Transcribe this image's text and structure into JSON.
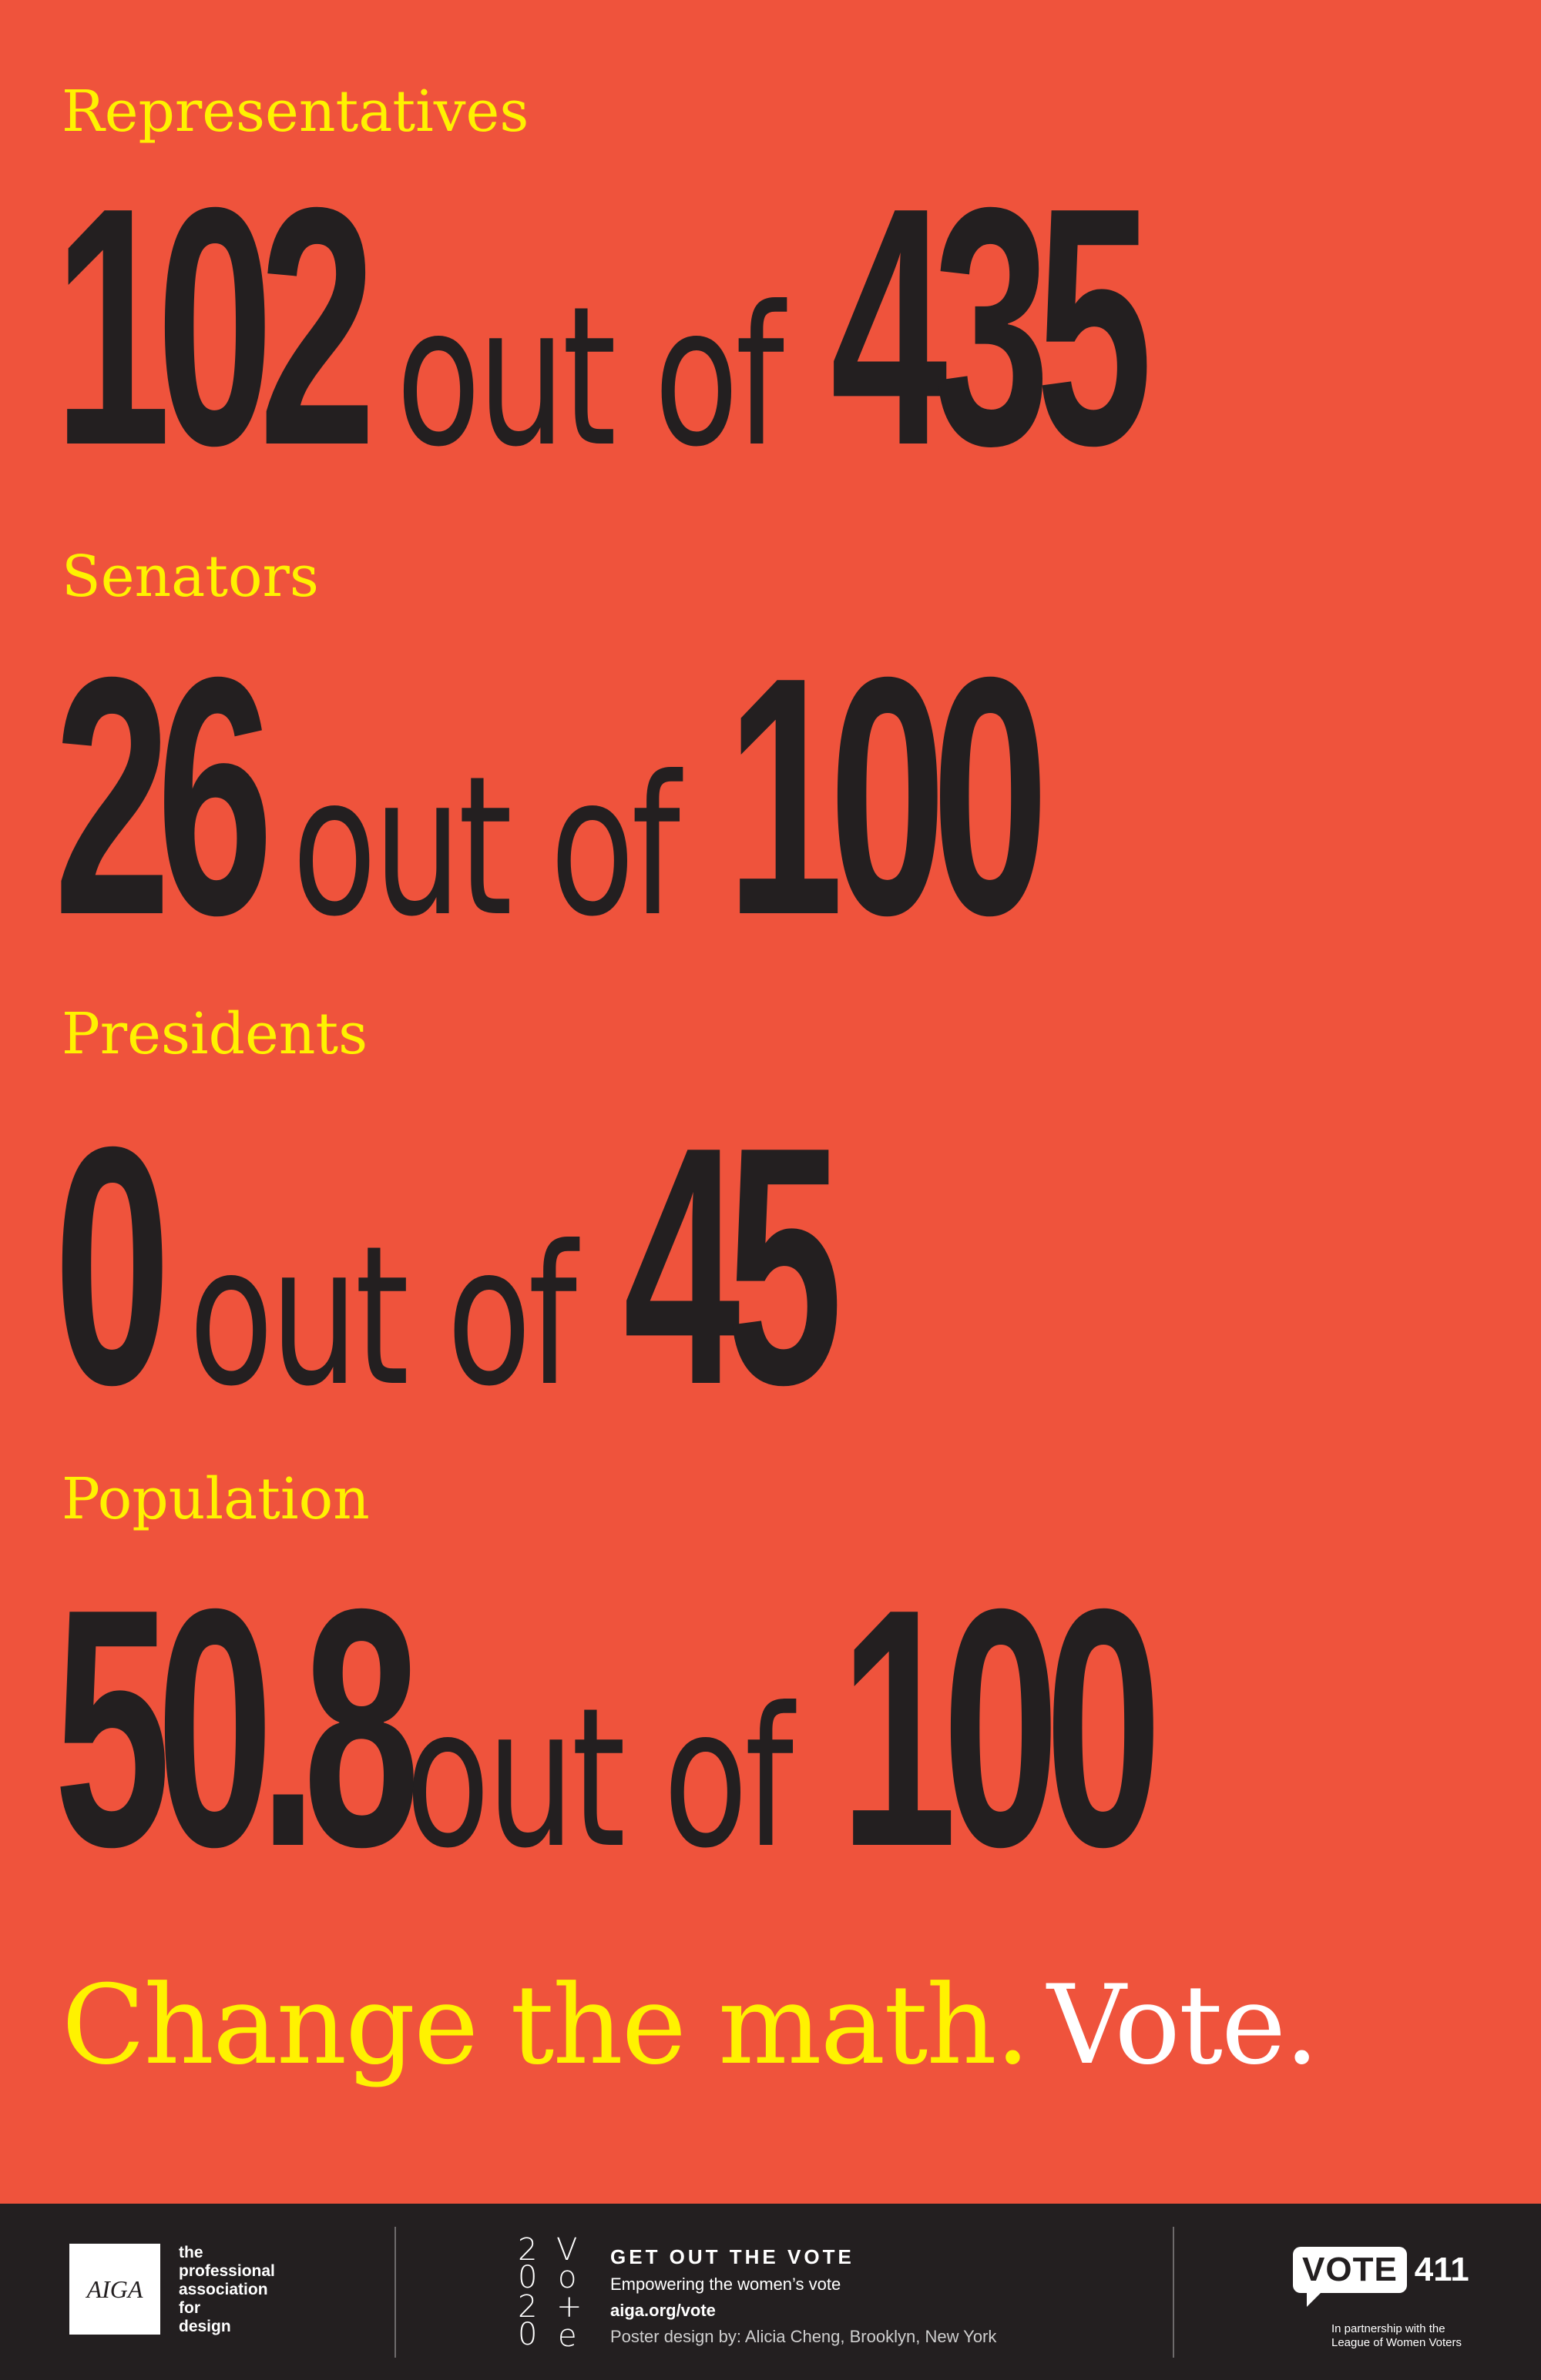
{
  "colors": {
    "background": "#ef533c",
    "label": "#fff200",
    "numbers": "#231f20",
    "footer": "#231f20",
    "vote_word": "#ffffff"
  },
  "stats": [
    {
      "label": "Representatives",
      "count": "102",
      "out_of": "out of",
      "total": "435"
    },
    {
      "label": "Senators",
      "count": "26",
      "out_of": "out of",
      "total": "100"
    },
    {
      "label": "Presidents",
      "count": "0",
      "out_of": "out of",
      "total": "45"
    },
    {
      "label": "Population",
      "count": "50.8",
      "out_of": "out of",
      "total": "100"
    }
  ],
  "tagline": {
    "main": "Change the math.",
    "vote": "Vote."
  },
  "footer": {
    "aiga_logo": "AIGA",
    "aiga_desc": [
      "the",
      "professional",
      "association",
      "for",
      "design"
    ],
    "mark_glyphs": [
      "2",
      "V",
      "0",
      "o",
      "2",
      "+",
      "0",
      "e"
    ],
    "gotv_title": "GET OUT THE VOTE",
    "gotv_subtitle": "Empowering the women’s vote",
    "gotv_url": "aiga.org/vote",
    "credit": "Poster design by: Alicia Cheng, Brooklyn, New York",
    "vote411_word": "VOTE",
    "vote411_num": "411",
    "vote411_partner": [
      "In partnership with the",
      "League of Women Voters"
    ]
  }
}
